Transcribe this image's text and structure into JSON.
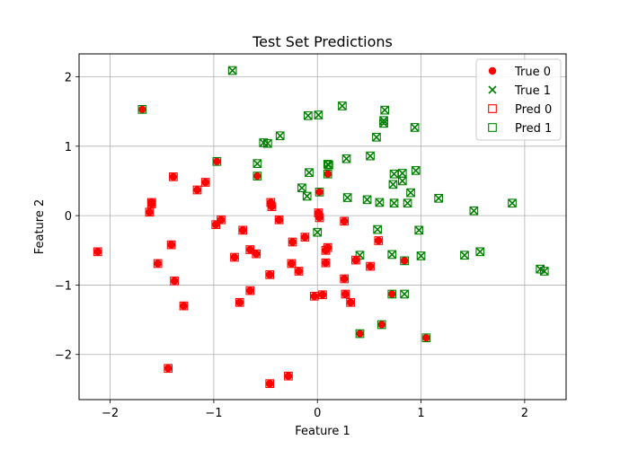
{
  "chart_data": {
    "type": "scatter",
    "title": "Test Set Predictions",
    "xlabel": "Feature 1",
    "ylabel": "Feature 2",
    "xlim": [
      -2.3,
      2.4
    ],
    "ylim": [
      -2.65,
      2.33
    ],
    "xticks": [
      -2,
      -1,
      0,
      1,
      2
    ],
    "yticks": [
      -2,
      -1,
      0,
      1,
      2
    ],
    "xtick_labels": [
      "−2",
      "−1",
      "0",
      "1",
      "2"
    ],
    "ytick_labels": [
      "−2",
      "−1",
      "0",
      "1",
      "2"
    ],
    "grid": true,
    "legend_position": "top-right",
    "colors": {
      "class0": "#ff0000",
      "class1": "#008000"
    },
    "legend": [
      {
        "label": "True 0",
        "marker": "circle",
        "color": "#ff0000"
      },
      {
        "label": "True 1",
        "marker": "x",
        "color": "#008000"
      },
      {
        "label": "Pred 0",
        "marker": "square",
        "color": "#ff0000"
      },
      {
        "label": "Pred 1",
        "marker": "square",
        "color": "#008000"
      }
    ],
    "points": [
      {
        "x": -1.69,
        "y": 1.53,
        "t": 0,
        "p": 1
      },
      {
        "x": -0.82,
        "y": 2.09,
        "t": 1,
        "p": 1
      },
      {
        "x": -0.97,
        "y": 0.78,
        "t": 0,
        "p": 1
      },
      {
        "x": -0.58,
        "y": 0.75,
        "t": 1,
        "p": 1
      },
      {
        "x": -0.58,
        "y": 0.57,
        "t": 0,
        "p": 1
      },
      {
        "x": -0.52,
        "y": 1.05,
        "t": 1,
        "p": 1
      },
      {
        "x": -0.48,
        "y": 1.04,
        "t": 1,
        "p": 1
      },
      {
        "x": -0.36,
        "y": 1.15,
        "t": 1,
        "p": 1
      },
      {
        "x": -0.09,
        "y": 1.44,
        "t": 1,
        "p": 1
      },
      {
        "x": 0.01,
        "y": 1.45,
        "t": 1,
        "p": 1
      },
      {
        "x": 0.24,
        "y": 1.58,
        "t": 1,
        "p": 1
      },
      {
        "x": 0.65,
        "y": 1.52,
        "t": 1,
        "p": 1
      },
      {
        "x": 0.64,
        "y": 1.37,
        "t": 1,
        "p": 1
      },
      {
        "x": 0.64,
        "y": 1.33,
        "t": 1,
        "p": 1
      },
      {
        "x": 0.94,
        "y": 1.27,
        "t": 1,
        "p": 1
      },
      {
        "x": 0.57,
        "y": 1.13,
        "t": 1,
        "p": 1
      },
      {
        "x": 0.51,
        "y": 0.86,
        "t": 1,
        "p": 1
      },
      {
        "x": 0.28,
        "y": 0.82,
        "t": 1,
        "p": 1
      },
      {
        "x": 0.1,
        "y": 0.74,
        "t": 1,
        "p": 1
      },
      {
        "x": 0.11,
        "y": 0.73,
        "t": 1,
        "p": 1
      },
      {
        "x": 0.1,
        "y": 0.6,
        "t": 0,
        "p": 1
      },
      {
        "x": -0.08,
        "y": 0.62,
        "t": 1,
        "p": 1
      },
      {
        "x": -0.15,
        "y": 0.4,
        "t": 1,
        "p": 1
      },
      {
        "x": -0.1,
        "y": 0.28,
        "t": 1,
        "p": 1
      },
      {
        "x": 0.02,
        "y": 0.34,
        "t": 0,
        "p": 1
      },
      {
        "x": 0.29,
        "y": 0.26,
        "t": 1,
        "p": 1
      },
      {
        "x": 0.48,
        "y": 0.23,
        "t": 1,
        "p": 1
      },
      {
        "x": 0.6,
        "y": 0.19,
        "t": 1,
        "p": 1
      },
      {
        "x": 0.73,
        "y": 0.45,
        "t": 1,
        "p": 1
      },
      {
        "x": 0.74,
        "y": 0.6,
        "t": 1,
        "p": 1
      },
      {
        "x": 0.82,
        "y": 0.61,
        "t": 1,
        "p": 1
      },
      {
        "x": 0.82,
        "y": 0.5,
        "t": 1,
        "p": 1
      },
      {
        "x": 0.95,
        "y": 0.65,
        "t": 1,
        "p": 1
      },
      {
        "x": 0.9,
        "y": 0.33,
        "t": 1,
        "p": 1
      },
      {
        "x": 0.74,
        "y": 0.18,
        "t": 1,
        "p": 1
      },
      {
        "x": 0.87,
        "y": 0.18,
        "t": 1,
        "p": 1
      },
      {
        "x": 1.17,
        "y": 0.25,
        "t": 1,
        "p": 1
      },
      {
        "x": 1.51,
        "y": 0.07,
        "t": 1,
        "p": 1
      },
      {
        "x": 1.88,
        "y": 0.18,
        "t": 1,
        "p": 1
      },
      {
        "x": 0.98,
        "y": -0.21,
        "t": 1,
        "p": 1
      },
      {
        "x": 0.58,
        "y": -0.2,
        "t": 1,
        "p": 1
      },
      {
        "x": 0.0,
        "y": -0.24,
        "t": 1,
        "p": 1
      },
      {
        "x": 0.72,
        "y": -0.56,
        "t": 1,
        "p": 1
      },
      {
        "x": 1.0,
        "y": -0.58,
        "t": 1,
        "p": 1
      },
      {
        "x": 1.42,
        "y": -0.57,
        "t": 1,
        "p": 1
      },
      {
        "x": 1.57,
        "y": -0.52,
        "t": 1,
        "p": 1
      },
      {
        "x": 0.41,
        "y": -0.57,
        "t": 1,
        "p": 1
      },
      {
        "x": 0.84,
        "y": -1.13,
        "t": 1,
        "p": 1
      },
      {
        "x": 0.72,
        "y": -1.13,
        "t": 0,
        "p": 1
      },
      {
        "x": 2.15,
        "y": -0.77,
        "t": 1,
        "p": 1
      },
      {
        "x": 2.19,
        "y": -0.8,
        "t": 1,
        "p": 1
      },
      {
        "x": 0.41,
        "y": -1.7,
        "t": 0,
        "p": 1
      },
      {
        "x": 0.62,
        "y": -1.57,
        "t": 0,
        "p": 1
      },
      {
        "x": 1.05,
        "y": -1.76,
        "t": 0,
        "p": 1
      },
      {
        "x": 0.84,
        "y": -0.65,
        "t": 0,
        "p": 1
      },
      {
        "x": -2.12,
        "y": -0.52,
        "t": 0,
        "p": 0
      },
      {
        "x": -1.62,
        "y": 0.05,
        "t": 0,
        "p": 0
      },
      {
        "x": -1.6,
        "y": 0.19,
        "t": 0,
        "p": 0
      },
      {
        "x": -1.6,
        "y": 0.17,
        "t": 0,
        "p": 0
      },
      {
        "x": -1.39,
        "y": 0.56,
        "t": 0,
        "p": 0
      },
      {
        "x": -1.16,
        "y": 0.37,
        "t": 0,
        "p": 0
      },
      {
        "x": -1.08,
        "y": 0.48,
        "t": 0,
        "p": 0
      },
      {
        "x": -1.54,
        "y": -0.69,
        "t": 0,
        "p": 0
      },
      {
        "x": -1.41,
        "y": -0.42,
        "t": 0,
        "p": 0
      },
      {
        "x": -1.38,
        "y": -0.94,
        "t": 0,
        "p": 0
      },
      {
        "x": -1.29,
        "y": -1.3,
        "t": 0,
        "p": 0
      },
      {
        "x": -1.44,
        "y": -2.2,
        "t": 0,
        "p": 0
      },
      {
        "x": -0.98,
        "y": -0.13,
        "t": 0,
        "p": 0
      },
      {
        "x": -0.93,
        "y": -0.06,
        "t": 0,
        "p": 0
      },
      {
        "x": -0.8,
        "y": -0.6,
        "t": 0,
        "p": 0
      },
      {
        "x": -0.72,
        "y": -0.21,
        "t": 0,
        "p": 0
      },
      {
        "x": -0.65,
        "y": -0.49,
        "t": 0,
        "p": 0
      },
      {
        "x": -0.59,
        "y": -0.55,
        "t": 0,
        "p": 0
      },
      {
        "x": -0.65,
        "y": -1.08,
        "t": 0,
        "p": 0
      },
      {
        "x": -0.75,
        "y": -1.25,
        "t": 0,
        "p": 0
      },
      {
        "x": -0.45,
        "y": 0.19,
        "t": 0,
        "p": 0
      },
      {
        "x": -0.44,
        "y": 0.13,
        "t": 0,
        "p": 0
      },
      {
        "x": -0.37,
        "y": -0.06,
        "t": 0,
        "p": 0
      },
      {
        "x": -0.46,
        "y": -0.85,
        "t": 0,
        "p": 0
      },
      {
        "x": -0.24,
        "y": -0.38,
        "t": 0,
        "p": 0
      },
      {
        "x": -0.12,
        "y": -0.31,
        "t": 0,
        "p": 0
      },
      {
        "x": -0.25,
        "y": -0.69,
        "t": 0,
        "p": 0
      },
      {
        "x": -0.18,
        "y": -0.8,
        "t": 0,
        "p": 0
      },
      {
        "x": 0.01,
        "y": 0.04,
        "t": 0,
        "p": 0
      },
      {
        "x": 0.02,
        "y": -0.03,
        "t": 0,
        "p": 0
      },
      {
        "x": 0.1,
        "y": -0.46,
        "t": 0,
        "p": 0
      },
      {
        "x": 0.08,
        "y": -0.5,
        "t": 0,
        "p": 0
      },
      {
        "x": 0.08,
        "y": -0.68,
        "t": 0,
        "p": 0
      },
      {
        "x": -0.03,
        "y": -1.16,
        "t": 0,
        "p": 0
      },
      {
        "x": 0.05,
        "y": -1.14,
        "t": 0,
        "p": 0
      },
      {
        "x": 0.26,
        "y": -0.08,
        "t": 0,
        "p": 0
      },
      {
        "x": 0.26,
        "y": -0.91,
        "t": 0,
        "p": 0
      },
      {
        "x": 0.27,
        "y": -1.13,
        "t": 0,
        "p": 0
      },
      {
        "x": 0.32,
        "y": -1.25,
        "t": 0,
        "p": 0
      },
      {
        "x": 0.37,
        "y": -0.64,
        "t": 0,
        "p": 0
      },
      {
        "x": 0.51,
        "y": -0.73,
        "t": 0,
        "p": 0
      },
      {
        "x": 0.59,
        "y": -0.36,
        "t": 0,
        "p": 0
      },
      {
        "x": -0.46,
        "y": -2.42,
        "t": 0,
        "p": 0
      },
      {
        "x": -0.28,
        "y": -2.31,
        "t": 0,
        "p": 0
      }
    ]
  }
}
